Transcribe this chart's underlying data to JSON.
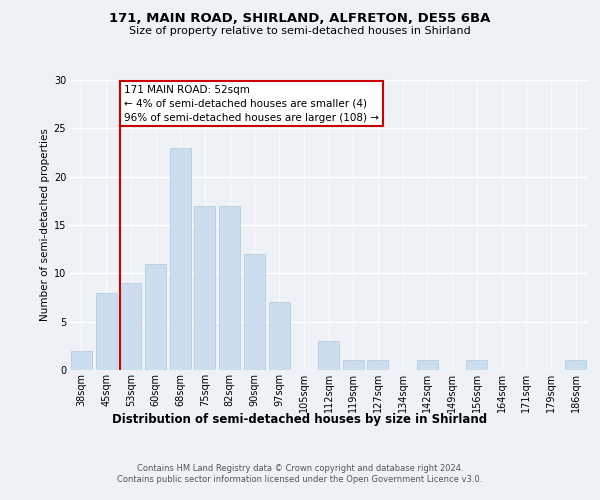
{
  "title1": "171, MAIN ROAD, SHIRLAND, ALFRETON, DE55 6BA",
  "title2": "Size of property relative to semi-detached houses in Shirland",
  "xlabel": "Distribution of semi-detached houses by size in Shirland",
  "ylabel": "Number of semi-detached properties",
  "categories": [
    "38sqm",
    "45sqm",
    "53sqm",
    "60sqm",
    "68sqm",
    "75sqm",
    "82sqm",
    "90sqm",
    "97sqm",
    "105sqm",
    "112sqm",
    "119sqm",
    "127sqm",
    "134sqm",
    "142sqm",
    "149sqm",
    "156sqm",
    "164sqm",
    "171sqm",
    "179sqm",
    "186sqm"
  ],
  "values": [
    2,
    8,
    9,
    11,
    23,
    17,
    17,
    12,
    7,
    0,
    3,
    1,
    1,
    0,
    1,
    0,
    1,
    0,
    0,
    0,
    1
  ],
  "bar_color": "#ccdded",
  "bar_edge_color": "#aec8df",
  "annotation_title": "171 MAIN ROAD: 52sqm",
  "annotation_line1": "← 4% of semi-detached houses are smaller (4)",
  "annotation_line2": "96% of semi-detached houses are larger (108) →",
  "annotation_box_color": "#ffffff",
  "annotation_box_edge_color": "#cc0000",
  "vline_color": "#cc0000",
  "ylim": [
    0,
    30
  ],
  "yticks": [
    0,
    5,
    10,
    15,
    20,
    25,
    30
  ],
  "footer1": "Contains HM Land Registry data © Crown copyright and database right 2024.",
  "footer2": "Contains public sector information licensed under the Open Government Licence v3.0.",
  "bg_color": "#eef2f7",
  "plot_bg_color": "#eef2f7",
  "grid_color": "#ffffff",
  "title1_fontsize": 9.5,
  "title2_fontsize": 8.0,
  "xlabel_fontsize": 8.5,
  "ylabel_fontsize": 7.5,
  "tick_fontsize": 7.0,
  "annot_fontsize": 7.5,
  "footer_fontsize": 6.0
}
